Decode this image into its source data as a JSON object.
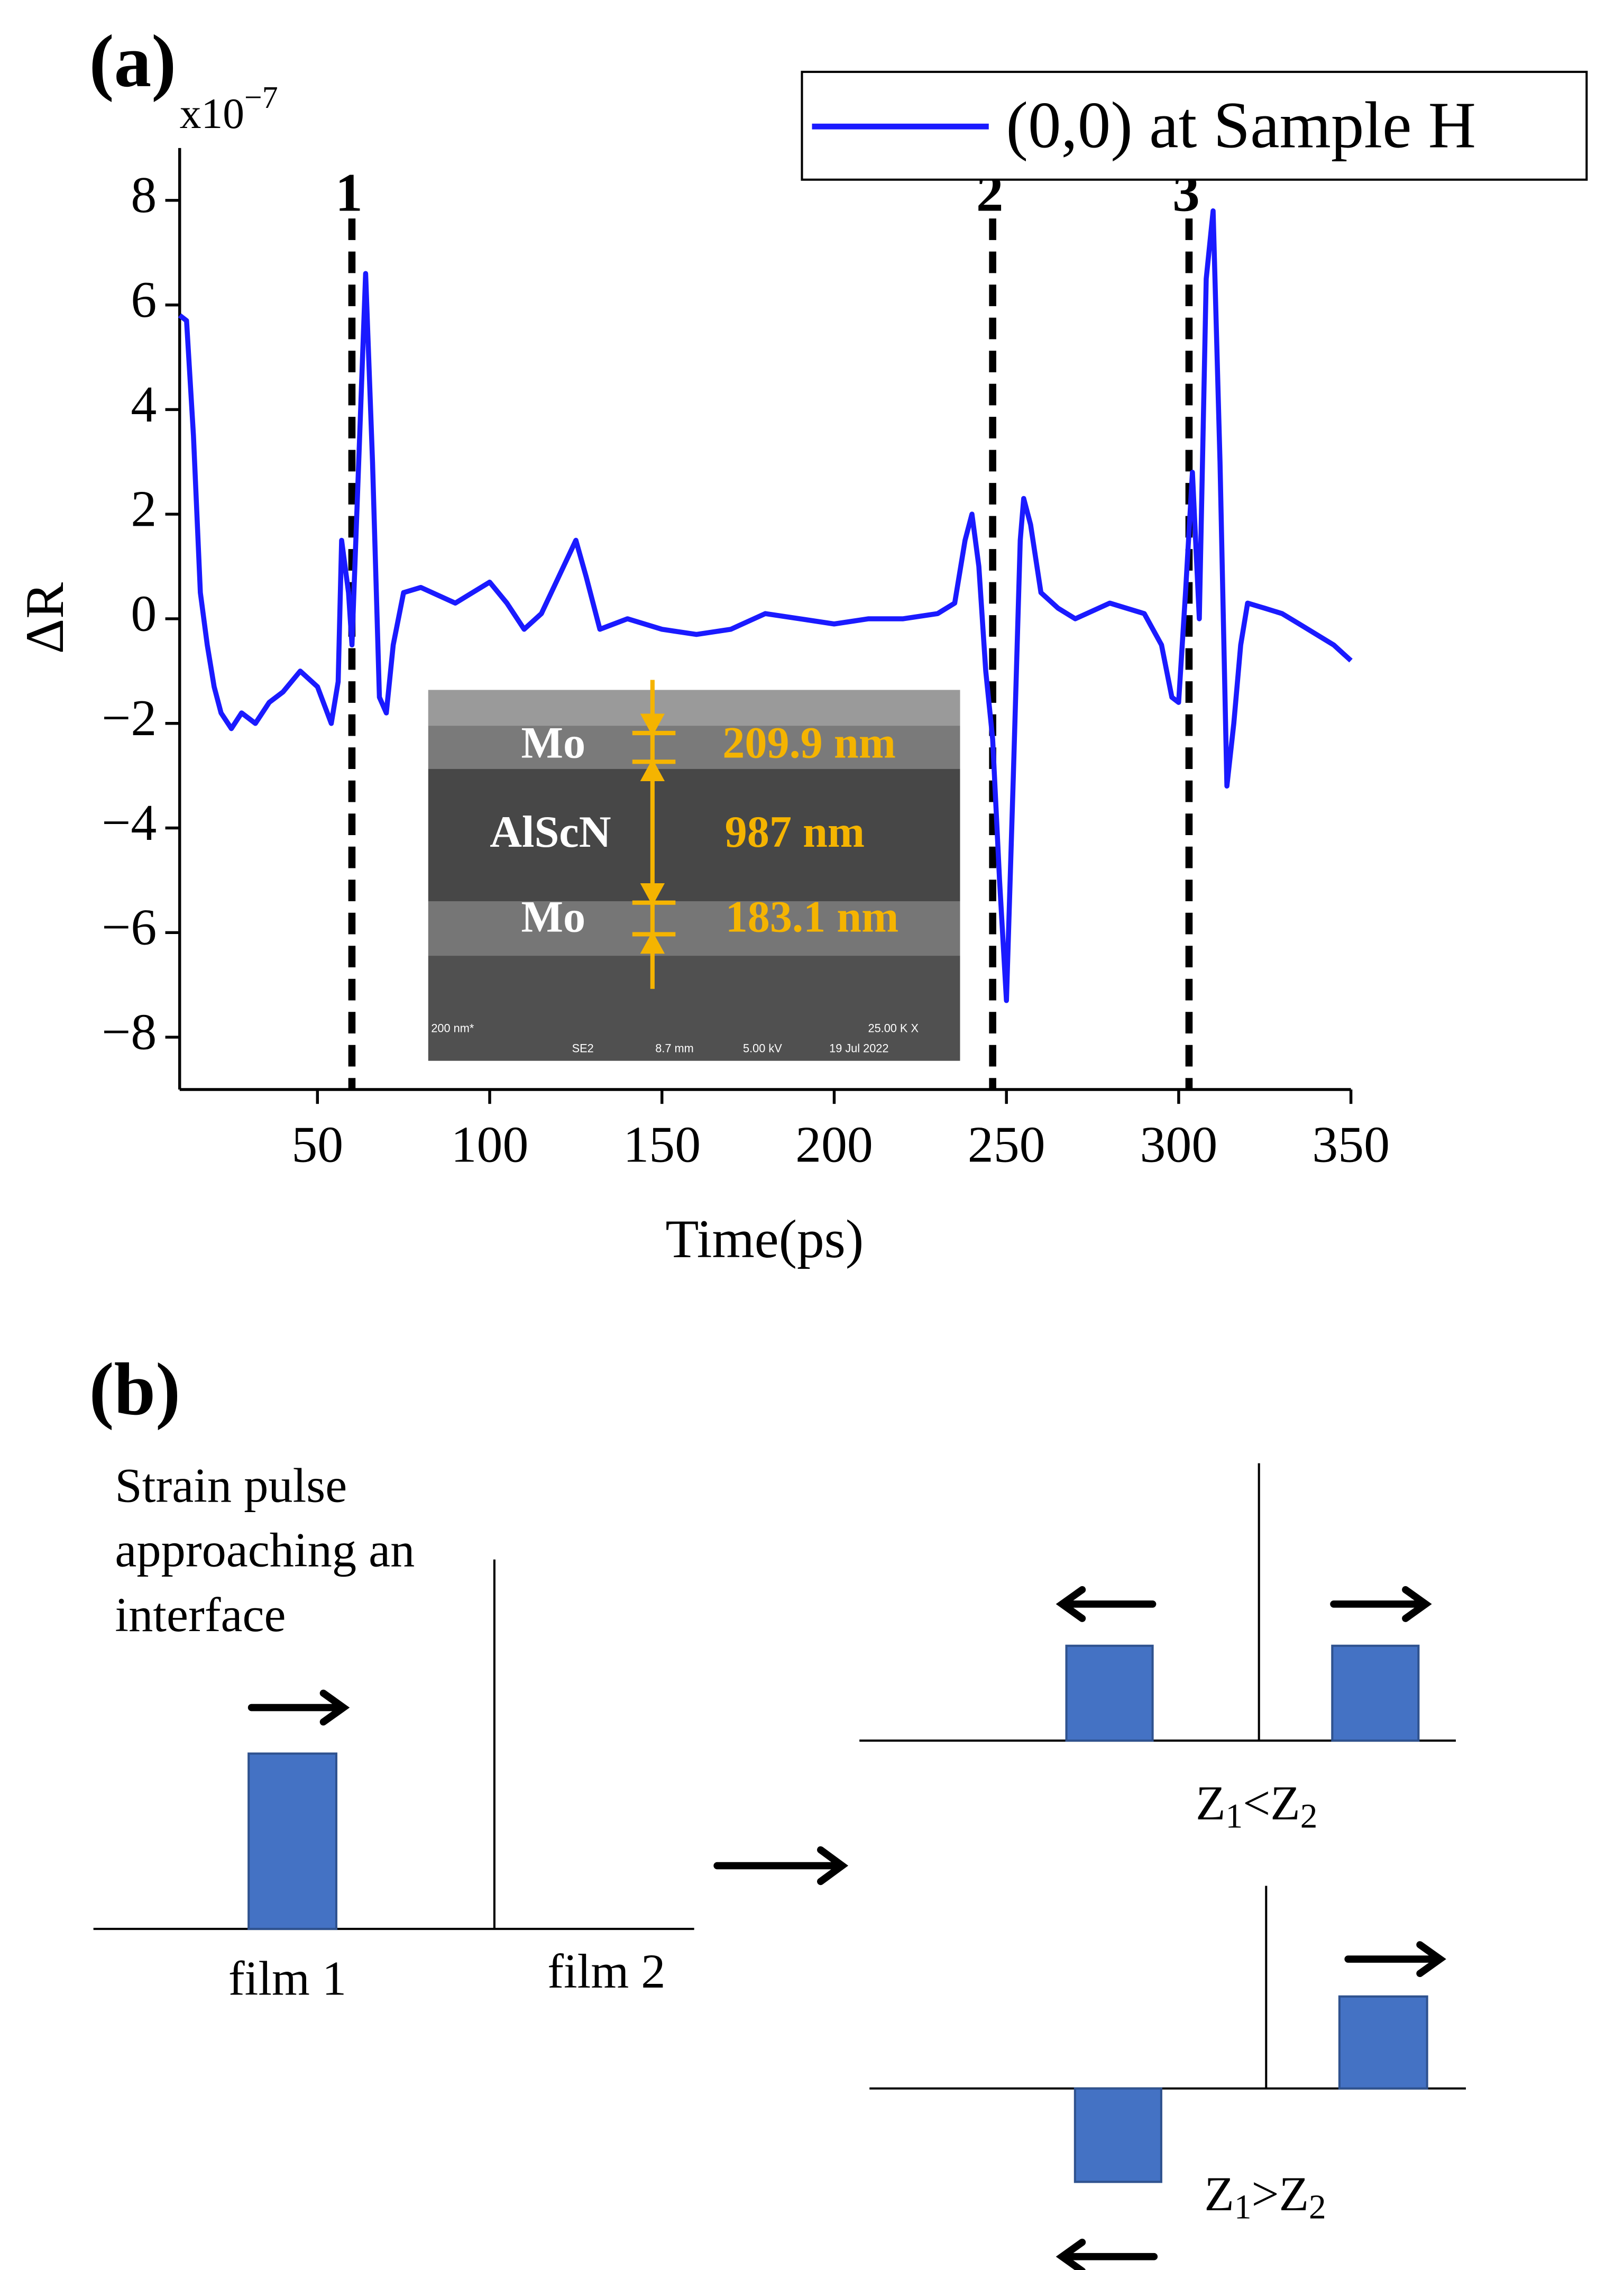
{
  "panel_a_label": "(a)",
  "panel_b_label": "(b)",
  "chart_data": {
    "type": "line",
    "x_label": "Time(ps)",
    "y_label": "ΔR",
    "y_multiplier": {
      "base": "x10",
      "exponent": "−7"
    },
    "xlim": [
      10,
      350
    ],
    "ylim": [
      -9,
      9
    ],
    "xticks": [
      50,
      100,
      150,
      200,
      250,
      300,
      350
    ],
    "yticks": [
      {
        "value": -8,
        "label": "−8"
      },
      {
        "value": -6,
        "label": "−6"
      },
      {
        "value": -4,
        "label": "−4"
      },
      {
        "value": -2,
        "label": "−2"
      },
      0,
      2,
      4,
      6,
      8
    ],
    "legend": "top-right",
    "x": [
      10,
      12,
      14,
      16,
      18,
      20,
      22,
      25,
      28,
      32,
      36,
      40,
      45,
      50,
      54,
      56,
      57,
      59,
      60,
      62,
      64,
      66,
      68,
      70,
      72,
      75,
      80,
      90,
      100,
      105,
      110,
      115,
      120,
      125,
      128,
      132,
      140,
      150,
      160,
      170,
      180,
      190,
      200,
      210,
      220,
      230,
      235,
      238,
      240,
      242,
      244,
      246,
      248,
      250,
      252,
      254,
      255,
      257,
      260,
      265,
      270,
      280,
      290,
      295,
      298,
      300,
      302,
      304,
      306,
      308,
      310,
      312,
      314,
      316,
      318,
      320,
      325,
      330,
      335,
      340,
      345,
      350
    ],
    "series": [
      {
        "name": "(0,0) at Sample H",
        "color": "#1a1aff",
        "values": [
          5.8,
          5.7,
          3.5,
          0.5,
          -0.5,
          -1.3,
          -1.8,
          -2.1,
          -1.8,
          -2.0,
          -1.6,
          -1.4,
          -1.0,
          -1.3,
          -2.0,
          -1.2,
          1.5,
          0.5,
          -0.5,
          3,
          6.6,
          3,
          -1.5,
          -1.8,
          -0.5,
          0.5,
          0.6,
          0.3,
          0.7,
          0.3,
          -0.2,
          0.1,
          0.8,
          1.5,
          0.8,
          -0.2,
          0,
          -0.2,
          -0.3,
          -0.2,
          0.1,
          0,
          -0.1,
          0,
          0,
          0.1,
          0.3,
          1.5,
          2,
          1,
          -1,
          -2.3,
          -5,
          -7.3,
          -3,
          1.5,
          2.3,
          1.8,
          0.5,
          0.2,
          0,
          0.3,
          0.1,
          -0.5,
          -1.5,
          -1.6,
          0.5,
          2.8,
          0,
          6.5,
          7.8,
          3,
          -3.2,
          -2,
          -0.5,
          0.3,
          0.2,
          0.1,
          -0.1,
          -0.3,
          -0.5,
          -0.8
        ]
      }
    ],
    "annotations": [
      {
        "x": 60,
        "label": "1"
      },
      {
        "x": 246,
        "label": "2"
      },
      {
        "x": 303,
        "label": "3"
      }
    ],
    "inset": {
      "layers": [
        {
          "material": "Mo",
          "thickness": "209.9 nm"
        },
        {
          "material": "AlScN",
          "thickness": "987 nm"
        },
        {
          "material": "Mo",
          "thickness": "183.1 nm"
        }
      ],
      "footer": [
        "200 nm*",
        "SE2",
        "8.7 mm",
        "5.00 kV",
        "19 Jul 2022",
        "25.00 K X"
      ]
    }
  },
  "diagram": {
    "caption_lines": [
      "Strain pulse",
      "approaching an",
      "interface"
    ],
    "film1": "film 1",
    "film2": "film 2",
    "case_lt": [
      "Z",
      "1",
      "<Z",
      "2"
    ],
    "case_gt": [
      "Z",
      "1",
      ">Z",
      "2"
    ]
  }
}
